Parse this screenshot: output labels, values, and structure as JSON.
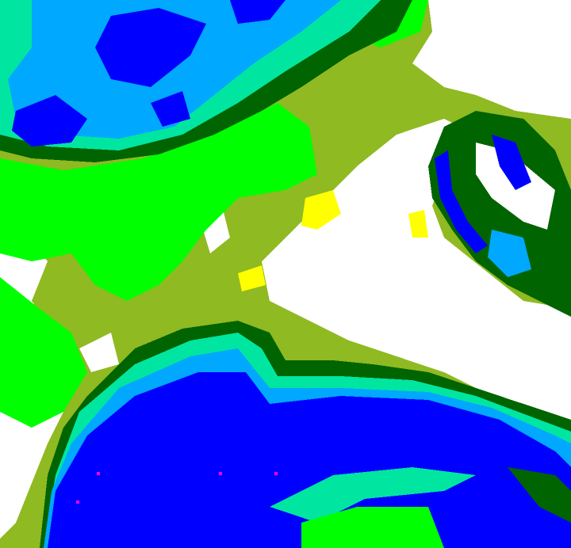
{
  "image": {
    "kind": "false-color raster field",
    "palette": {
      "white": "#ffffff",
      "yellow": "#ffff00",
      "olive": "#8fba22",
      "green": "#00ff00",
      "dark_green": "#006400",
      "teal": "#00e6a0",
      "sky_blue": "#00a8ff",
      "blue": "#0000ff",
      "magenta": "#ff00ff"
    }
  }
}
